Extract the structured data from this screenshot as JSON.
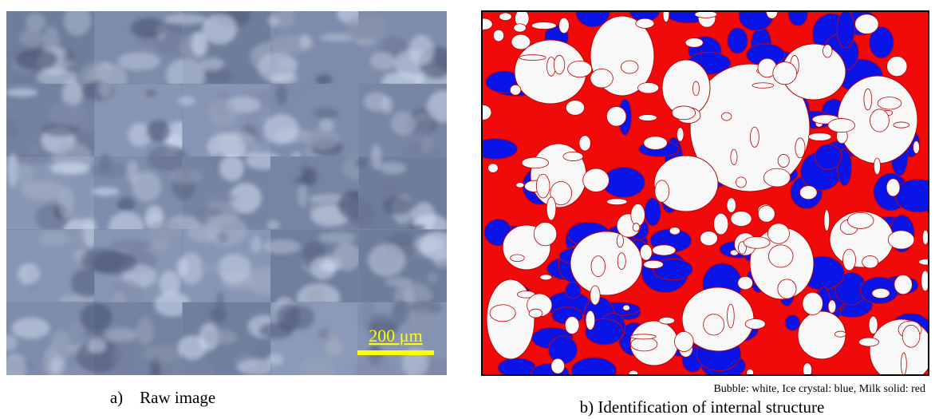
{
  "panel_a": {
    "scale_bar": "200 μm",
    "caption": "a) Raw image"
  },
  "panel_b": {
    "legend": "Bubble: white, Ice crystal: blue, Milk solid: red",
    "caption": "b) Identification of internal structure"
  }
}
